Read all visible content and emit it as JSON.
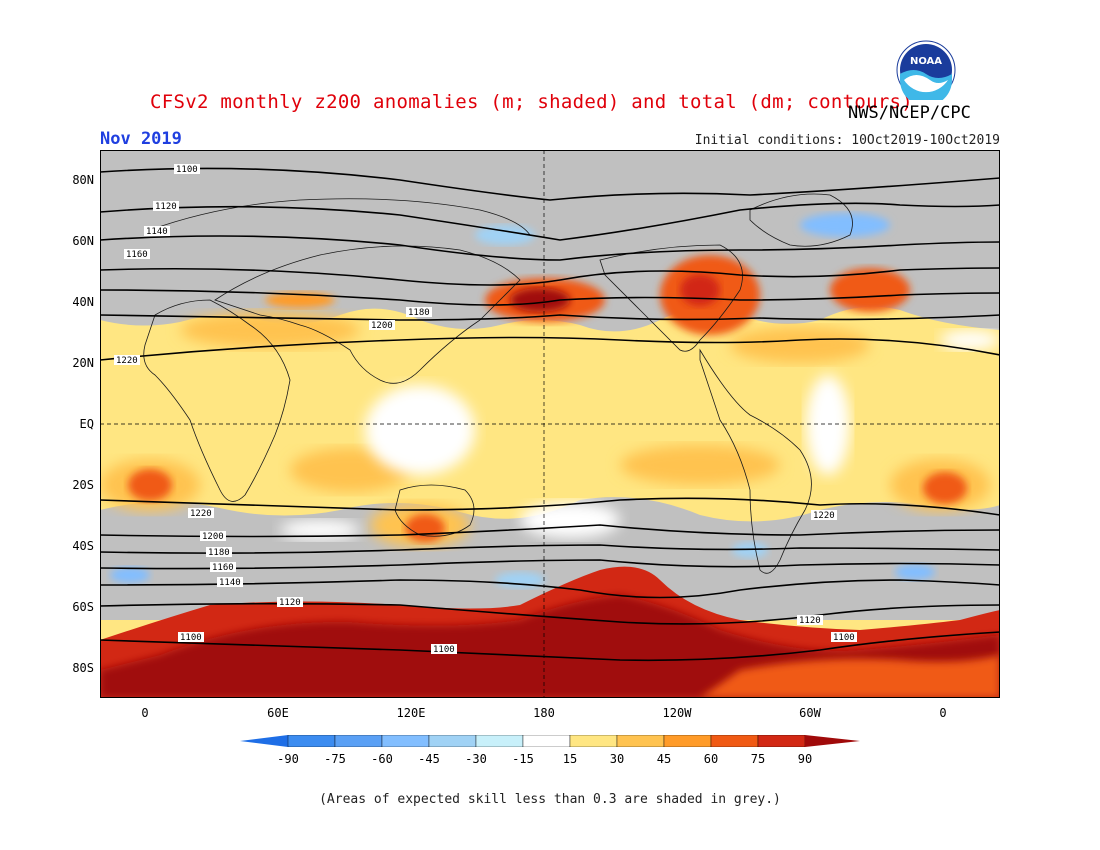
{
  "header": {
    "title": "CFSv2 monthly z200 anomalies (m; shaded) and total (dm; contours)",
    "agency": "NWS/NCEP/CPC",
    "logo_text": "NOAA",
    "month": "Nov 2019",
    "initial_conditions": "Initial conditions: 10Oct2019-10Oct2019"
  },
  "map": {
    "projection": "equirectangular",
    "lat_labels": [
      "80N",
      "60N",
      "40N",
      "20N",
      "EQ",
      "20S",
      "40S",
      "60S",
      "80S"
    ],
    "lon_labels": [
      "0",
      "60E",
      "120E",
      "180",
      "120W",
      "60W",
      "0"
    ],
    "lon_range_deg": [
      -20,
      380
    ],
    "lat_range_deg": [
      -90,
      90
    ]
  },
  "legend": {
    "labels": [
      "-90",
      "-75",
      "-60",
      "-45",
      "-30",
      "-15",
      "15",
      "30",
      "45",
      "60",
      "75",
      "90"
    ],
    "colors": [
      "#1e6ee6",
      "#3c8cf0",
      "#5aa0f5",
      "#82beff",
      "#a0d2f5",
      "#c8f0fa",
      "#ffffff",
      "#ffe682",
      "#ffc350",
      "#ff9b28",
      "#f05a14",
      "#d22814",
      "#a00a0a"
    ],
    "low_skill_color": "#c0c0c0"
  },
  "contours": {
    "nh_labels": [
      "1100",
      "1120",
      "1140",
      "1160",
      "1180",
      "1200",
      "1220"
    ],
    "sh_labels": [
      "1220",
      "1200",
      "1180",
      "1160",
      "1140",
      "1120",
      "1100"
    ]
  },
  "footer": "(Areas of expected skill less than 0.3 are shaded in grey.)"
}
